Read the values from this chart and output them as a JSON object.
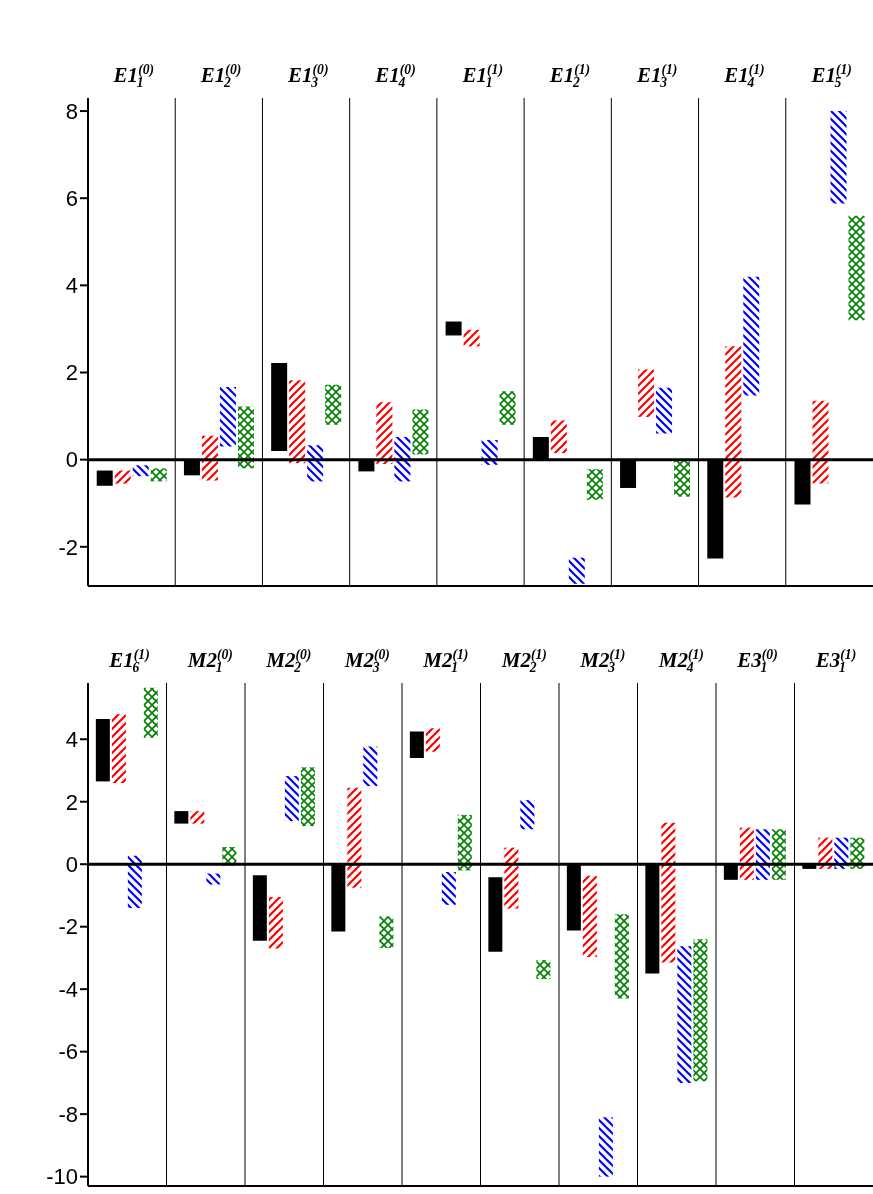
{
  "chart_data": [
    {
      "type": "bar",
      "categories": [
        "E1$^{(0)}$$_{1}$",
        "E1$^{(0)}$$_{2}$",
        "E1$^{(0)}$$_{3}$",
        "E1$^{(0)}$$_{4}$",
        "E1$^{(1)}$$_{1}$",
        "E1$^{(1)}$$_{2}$",
        "E1$^{(1)}$$_{3}$",
        "E1$^{(1)}$$_{4}$",
        "E1$^{(1)}$$_{5}$"
      ],
      "series": [
        {
          "color": "#000000",
          "base": [
            -0.6,
            -0.36,
            0.2,
            -0.27,
            2.85,
            0,
            -0.65,
            -2.27,
            -1.03
          ],
          "values": [
            0.35,
            0.36,
            2.02,
            0.27,
            0.32,
            0.52,
            0.65,
            2.27,
            1.03
          ]
        },
        {
          "color": "#ff0000",
          "base": [
            -0.55,
            -0.48,
            -0.08,
            -0.1,
            2.6,
            0.15,
            0.98,
            -0.87,
            -0.55
          ],
          "values": [
            0.3,
            1.03,
            1.9,
            1.42,
            0.38,
            0.75,
            1.09,
            3.47,
            1.9
          ]
        },
        {
          "color": "#0000ff",
          "base": [
            -0.38,
            0.3,
            -0.5,
            -0.5,
            -0.12,
            -2.85,
            0.6,
            1.47,
            5.88
          ],
          "values": [
            0.25,
            1.37,
            0.83,
            1.02,
            0.57,
            0.6,
            1.05,
            2.73,
            2.12
          ]
        },
        {
          "color": "#008000",
          "base": [
            -0.5,
            -0.2,
            0.8,
            0.12,
            0.8,
            -0.92,
            -0.85,
            null,
            3.2
          ],
          "values": [
            0.3,
            1.42,
            0.92,
            1.03,
            0.77,
            0.7,
            0.85,
            null,
            2.4
          ]
        }
      ],
      "ylim": [
        -2.9,
        8.3
      ],
      "yticks": [
        -2,
        0,
        2,
        4,
        6,
        8
      ],
      "grid": "x",
      "ref_lines": [
        {
          "axis": "y",
          "value": 0,
          "color": "#000000"
        }
      ]
    },
    {
      "type": "bar",
      "categories": [
        "E1$^{(1)}$$_{6}$",
        "M2$^{(0)}$$_{1}$",
        "M2$^{(0)}$$_{2}$",
        "M2$^{(0)}$$_{3}$",
        "M2$^{(1)}$$_{1}$",
        "M2$^{(1)}$$_{2}$",
        "M2$^{(1)}$$_{3}$",
        "M2$^{(1)}$$_{4}$",
        "E3$^{(0)}$$_{1}$",
        "E3$^{(1)}$$_{1}$"
      ],
      "series": [
        {
          "color": "#000000",
          "base": [
            2.65,
            1.3,
            -2.45,
            -2.15,
            3.4,
            -2.8,
            -2.12,
            -3.5,
            -0.5,
            -0.15
          ],
          "values": [
            2.0,
            0.4,
            2.1,
            2.15,
            0.85,
            2.38,
            2.12,
            3.5,
            0.5,
            0.15
          ]
        },
        {
          "color": "#ff0000",
          "base": [
            2.6,
            1.3,
            -2.7,
            -0.75,
            3.6,
            -1.42,
            -2.97,
            -3.15,
            -0.5,
            -0.15
          ],
          "values": [
            2.2,
            0.4,
            1.65,
            3.2,
            0.75,
            1.95,
            2.6,
            4.48,
            1.67,
            1.0
          ]
        },
        {
          "color": "#0000ff",
          "base": [
            -1.4,
            -0.65,
            1.38,
            2.5,
            -1.3,
            1.12,
            -10.0,
            -7.0,
            -0.5,
            -0.15
          ],
          "values": [
            1.67,
            0.35,
            1.44,
            1.27,
            1.05,
            0.93,
            1.9,
            4.37,
            1.62,
            1.0
          ]
        },
        {
          "color": "#008000",
          "base": [
            4.05,
            -0.05,
            1.22,
            -2.68,
            -0.2,
            -3.68,
            -4.3,
            -6.95,
            -0.5,
            -0.15
          ],
          "values": [
            1.6,
            0.6,
            1.88,
            1.01,
            1.78,
            0.61,
            2.7,
            4.55,
            1.62,
            1.0
          ]
        }
      ],
      "ylim": [
        -10.3,
        5.8
      ],
      "yticks": [
        -10,
        -8,
        -6,
        -4,
        -2,
        0,
        2,
        4
      ],
      "grid": "x",
      "ref_lines": [
        {
          "axis": "y",
          "value": 0,
          "color": "#000000"
        }
      ]
    }
  ]
}
